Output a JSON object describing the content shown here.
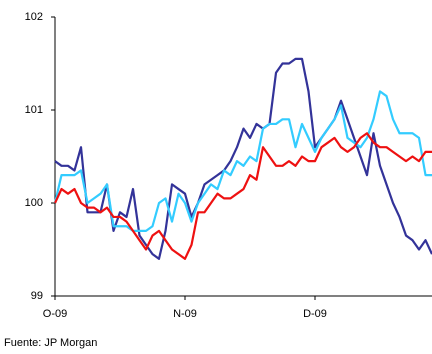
{
  "chart_data": {
    "type": "line",
    "categories": [
      "O-09",
      null,
      null,
      null,
      null,
      null,
      null,
      null,
      null,
      null,
      null,
      null,
      null,
      null,
      null,
      null,
      null,
      null,
      null,
      null,
      "N-09",
      null,
      null,
      null,
      null,
      null,
      null,
      null,
      null,
      null,
      null,
      null,
      null,
      null,
      null,
      null,
      null,
      null,
      null,
      null,
      "D-09",
      null,
      null,
      null,
      null,
      null,
      null,
      null,
      null,
      null,
      null,
      null,
      null,
      null,
      null,
      null,
      null,
      null,
      null
    ],
    "series": [
      {
        "color": "#333399",
        "values": [
          100.45,
          100.4,
          100.4,
          100.35,
          100.6,
          99.9,
          99.9,
          99.9,
          100.2,
          99.7,
          99.9,
          99.85,
          100.15,
          99.65,
          99.55,
          99.45,
          99.4,
          99.7,
          100.2,
          100.15,
          100.1,
          99.85,
          100.0,
          100.2,
          100.25,
          100.3,
          100.35,
          100.45,
          100.6,
          100.8,
          100.7,
          100.85,
          100.8,
          100.85,
          101.4,
          101.5,
          101.5,
          101.55,
          101.55,
          101.2,
          100.6,
          100.7,
          100.8,
          100.9,
          101.1,
          100.9,
          100.7,
          100.5,
          100.3,
          100.75,
          100.4,
          100.2,
          100.0,
          99.85,
          99.65,
          99.6,
          99.5,
          99.6,
          99.45
        ]
      },
      {
        "color": "#33ccff",
        "values": [
          100.0,
          100.3,
          100.3,
          100.3,
          100.35,
          100.0,
          100.05,
          100.1,
          100.2,
          99.75,
          99.75,
          99.75,
          99.7,
          99.7,
          99.7,
          99.75,
          100.0,
          100.05,
          99.8,
          100.1,
          100.0,
          99.8,
          100.0,
          100.1,
          100.2,
          100.15,
          100.35,
          100.3,
          100.45,
          100.4,
          100.5,
          100.45,
          100.8,
          100.85,
          100.85,
          100.9,
          100.9,
          100.6,
          100.85,
          100.7,
          100.55,
          100.7,
          100.8,
          100.9,
          101.05,
          100.7,
          100.65,
          100.6,
          100.7,
          100.9,
          101.2,
          101.15,
          100.9,
          100.75,
          100.75,
          100.75,
          100.7,
          100.3,
          100.3
        ]
      },
      {
        "color": "#ee1111",
        "values": [
          100.0,
          100.15,
          100.1,
          100.15,
          100.0,
          99.95,
          99.95,
          99.9,
          99.95,
          99.85,
          99.85,
          99.8,
          99.7,
          99.6,
          99.5,
          99.65,
          99.7,
          99.6,
          99.5,
          99.45,
          99.4,
          99.55,
          99.9,
          99.9,
          100.0,
          100.1,
          100.05,
          100.05,
          100.1,
          100.15,
          100.3,
          100.25,
          100.6,
          100.5,
          100.4,
          100.4,
          100.45,
          100.4,
          100.5,
          100.45,
          100.45,
          100.6,
          100.65,
          100.7,
          100.6,
          100.55,
          100.6,
          100.7,
          100.75,
          100.65,
          100.6,
          100.6,
          100.55,
          100.5,
          100.45,
          100.5,
          100.45,
          100.55,
          100.55
        ]
      }
    ],
    "ylim": [
      99,
      102
    ],
    "yticks": [
      99,
      100,
      101,
      102
    ],
    "source": "Fuente: JP Morgan"
  }
}
